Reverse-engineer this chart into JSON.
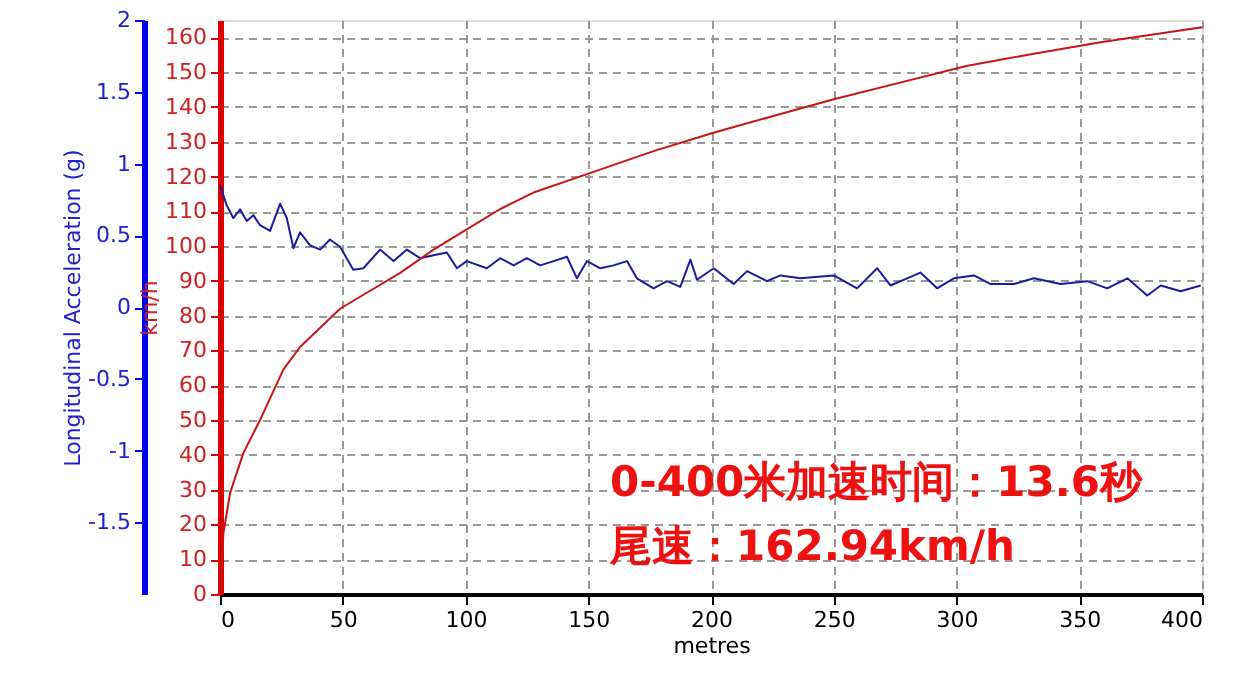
{
  "chart_data": {
    "type": "line",
    "xlabel": "metres",
    "ylabel": "Longitudinal Acceleration (g)",
    "y2label": "km/h",
    "xlim": [
      0,
      400
    ],
    "xticks": [
      0,
      50,
      100,
      150,
      200,
      250,
      300,
      350,
      400
    ],
    "ylim": [
      -2,
      2
    ],
    "yticks": [
      -1.5,
      -1,
      -0.5,
      0,
      0.5,
      1,
      1.5,
      2
    ],
    "y2lim": [
      0,
      165
    ],
    "y2ticks": [
      0,
      10,
      20,
      30,
      40,
      50,
      60,
      70,
      80,
      90,
      100,
      110,
      120,
      130,
      140,
      150,
      160
    ],
    "grid": true,
    "marker": "none",
    "line_style": "solid",
    "series": [
      {
        "color": "#1c1c9c",
        "axis": "y",
        "x": [
          0,
          2.7,
          5.4,
          8.2,
          10.9,
          13.6,
          16.3,
          20.4,
          24.5,
          27.2,
          29.9,
          32.6,
          36.7,
          40.8,
          44.8,
          48.9,
          54.3,
          58.4,
          65.2,
          70.7,
          76.1,
          81.5,
          87,
          92.4,
          96.5,
          100.5,
          108.7,
          114.1,
          119.6,
          125,
          130.4,
          135.9,
          141.3,
          145.4,
          149.5,
          154.9,
          160.3,
          165.8,
          169.8,
          176.6,
          182.1,
          187.5,
          191.6,
          194.3,
          201.1,
          209.2,
          214.7,
          222.8,
          228.3,
          236.4,
          250,
          259.5,
          267.7,
          273.1,
          279.9,
          285.3,
          292.1,
          298.9,
          307.1,
          313.9,
          323.4,
          331.5,
          342.4,
          353.3,
          361.4,
          369.6,
          377.7,
          383.2,
          391.3,
          399.5
        ],
        "values": [
          0.85,
          0.71,
          0.62,
          0.68,
          0.6,
          0.64,
          0.57,
          0.53,
          0.72,
          0.62,
          0.41,
          0.52,
          0.43,
          0.4,
          0.47,
          0.42,
          0.26,
          0.27,
          0.4,
          0.32,
          0.4,
          0.34,
          0.36,
          0.38,
          0.27,
          0.32,
          0.27,
          0.34,
          0.29,
          0.34,
          0.29,
          0.32,
          0.35,
          0.2,
          0.32,
          0.27,
          0.29,
          0.32,
          0.2,
          0.13,
          0.18,
          0.14,
          0.33,
          0.19,
          0.27,
          0.16,
          0.25,
          0.18,
          0.22,
          0.2,
          0.22,
          0.13,
          0.27,
          0.15,
          0.2,
          0.24,
          0.13,
          0.2,
          0.22,
          0.16,
          0.16,
          0.2,
          0.16,
          0.18,
          0.13,
          0.2,
          0.08,
          0.15,
          0.11,
          0.15
        ]
      },
      {
        "color": "#c81414",
        "axis": "y2",
        "x": [
          0,
          1.4,
          4.1,
          9.5,
          16.3,
          25.8,
          32.6,
          48.9,
          59.8,
          73.4,
          87,
          100.5,
          114,
          127.7,
          149.5,
          176.6,
          201,
          222.8,
          250,
          277,
          304,
          331.5,
          358.7,
          400
        ],
        "values": [
          0,
          17.5,
          29,
          40.5,
          50,
          64.5,
          71,
          82,
          86.6,
          92.3,
          99,
          104.8,
          110.6,
          115.4,
          120.7,
          127.3,
          132.6,
          136.9,
          142.2,
          147,
          151.8,
          155.3,
          158.6,
          162.9
        ]
      }
    ],
    "annotations": [
      "0-400米加速时间：13.6秒",
      "尾速：162.94km/h"
    ]
  }
}
